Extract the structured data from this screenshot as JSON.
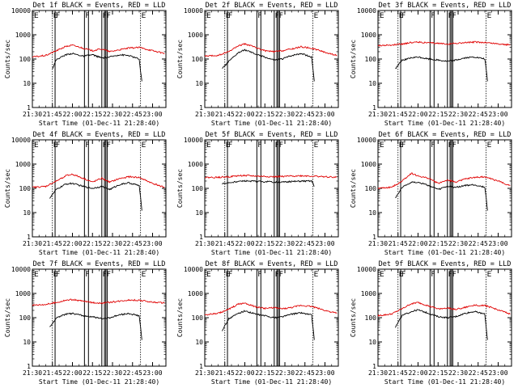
{
  "colors": {
    "events": "#000000",
    "lld": "#e00000",
    "axes": "#000000",
    "background": "#ffffff"
  },
  "shared": {
    "xlabel": "Start Time (01-Dec-11 21:28:40)",
    "ylabel": "Counts/sec",
    "xtick_labels": [
      "21:30",
      "21:45",
      "22:00",
      "22:15",
      "22:30",
      "22:45",
      "23:00"
    ],
    "ytick_labels": [
      "1",
      "10",
      "100",
      "1000",
      "10000"
    ],
    "flag_labels": [
      "E",
      "F",
      "F",
      "F",
      "F",
      "E"
    ]
  },
  "chart_data": [
    {
      "type": "line",
      "title": "Det 1f BLACK = Events, RED = LLD",
      "xlim": [
        "21:30",
        "23:10"
      ],
      "ylim": [
        1,
        10000
      ],
      "yscale": "log",
      "grid": false,
      "markers": [
        "21:45",
        "21:47",
        "22:09",
        "22:12",
        "22:22",
        "22:24",
        "22:25",
        "22:26",
        "22:51"
      ],
      "series": [
        {
          "name": "Events",
          "color": "#000000",
          "x": [
            "21:45",
            "21:48",
            "21:55",
            "22:00",
            "22:08",
            "22:15",
            "22:22",
            "22:28",
            "22:35",
            "22:42",
            "22:50",
            "22:51",
            "22:52"
          ],
          "values": [
            40,
            95,
            150,
            170,
            130,
            150,
            110,
            120,
            150,
            140,
            100,
            30,
            12
          ]
        },
        {
          "name": "LLD",
          "color": "#e00000",
          "x": [
            "21:30",
            "21:40",
            "21:48",
            "21:55",
            "22:00",
            "22:08",
            "22:15",
            "22:22",
            "22:28",
            "22:35",
            "22:42",
            "22:50",
            "23:00",
            "23:09"
          ],
          "values": [
            120,
            140,
            220,
            330,
            370,
            280,
            220,
            260,
            200,
            240,
            280,
            300,
            220,
            170
          ]
        }
      ]
    },
    {
      "type": "line",
      "title": "Det 2f BLACK = Events, RED = LLD",
      "xlim": [
        "21:30",
        "23:10"
      ],
      "ylim": [
        1,
        10000
      ],
      "yscale": "log",
      "grid": false,
      "markers": [
        "21:45",
        "21:47",
        "22:09",
        "22:12",
        "22:22",
        "22:24",
        "22:25",
        "22:26",
        "22:51"
      ],
      "series": [
        {
          "name": "Events",
          "color": "#000000",
          "x": [
            "21:43",
            "21:48",
            "21:55",
            "22:00",
            "22:08",
            "22:15",
            "22:22",
            "22:28",
            "22:35",
            "22:42",
            "22:50",
            "22:51",
            "22:52"
          ],
          "values": [
            40,
            80,
            180,
            240,
            160,
            120,
            90,
            100,
            140,
            170,
            120,
            40,
            12
          ]
        },
        {
          "name": "LLD",
          "color": "#e00000",
          "x": [
            "21:30",
            "21:40",
            "21:48",
            "21:55",
            "22:00",
            "22:08",
            "22:15",
            "22:22",
            "22:28",
            "22:35",
            "22:42",
            "22:50",
            "23:00",
            "23:09"
          ],
          "values": [
            130,
            140,
            200,
            350,
            420,
            300,
            220,
            200,
            220,
            260,
            320,
            280,
            190,
            140
          ]
        }
      ]
    },
    {
      "type": "line",
      "title": "Det 3f BLACK = Events, RED = LLD",
      "xlim": [
        "21:30",
        "23:10"
      ],
      "ylim": [
        1,
        10000
      ],
      "yscale": "log",
      "grid": false,
      "markers": [
        "21:45",
        "21:47",
        "22:09",
        "22:12",
        "22:22",
        "22:24",
        "22:25",
        "22:26",
        "22:51"
      ],
      "series": [
        {
          "name": "Events",
          "color": "#000000",
          "x": [
            "21:43",
            "21:48",
            "21:55",
            "22:00",
            "22:08",
            "22:15",
            "22:22",
            "22:28",
            "22:35",
            "22:42",
            "22:50",
            "22:51",
            "22:52"
          ],
          "values": [
            40,
            90,
            110,
            120,
            100,
            90,
            80,
            90,
            110,
            120,
            100,
            40,
            12
          ]
        },
        {
          "name": "LLD",
          "color": "#e00000",
          "x": [
            "21:30",
            "21:40",
            "21:48",
            "21:55",
            "22:00",
            "22:08",
            "22:15",
            "22:22",
            "22:28",
            "22:35",
            "22:42",
            "22:50",
            "23:00",
            "23:09"
          ],
          "values": [
            360,
            370,
            420,
            480,
            500,
            460,
            440,
            420,
            440,
            470,
            500,
            480,
            420,
            380
          ]
        }
      ]
    },
    {
      "type": "line",
      "title": "Det 4f BLACK = Events, RED = LLD",
      "xlim": [
        "21:30",
        "23:10"
      ],
      "ylim": [
        1,
        10000
      ],
      "yscale": "log",
      "grid": false,
      "markers": [
        "21:45",
        "21:47",
        "22:09",
        "22:12",
        "22:22",
        "22:24",
        "22:25",
        "22:26",
        "22:51"
      ],
      "series": [
        {
          "name": "Events",
          "color": "#000000",
          "x": [
            "21:43",
            "21:48",
            "21:55",
            "22:00",
            "22:08",
            "22:15",
            "22:22",
            "22:28",
            "22:35",
            "22:42",
            "22:50",
            "22:51",
            "22:52"
          ],
          "values": [
            40,
            90,
            150,
            160,
            120,
            100,
            120,
            90,
            140,
            170,
            130,
            40,
            12
          ]
        },
        {
          "name": "LLD",
          "color": "#e00000",
          "x": [
            "21:30",
            "21:40",
            "21:48",
            "21:55",
            "22:00",
            "22:08",
            "22:15",
            "22:22",
            "22:28",
            "22:35",
            "22:42",
            "22:50",
            "23:00",
            "23:09"
          ],
          "values": [
            110,
            120,
            200,
            330,
            380,
            260,
            180,
            260,
            180,
            250,
            300,
            280,
            160,
            110
          ]
        }
      ]
    },
    {
      "type": "line",
      "title": "Det 5f BLACK = Events, RED = LLD",
      "xlim": [
        "21:30",
        "23:10"
      ],
      "ylim": [
        1,
        10000
      ],
      "yscale": "log",
      "grid": false,
      "markers": [
        "21:45",
        "21:47",
        "22:09",
        "22:12",
        "22:22",
        "22:24",
        "22:25",
        "22:26",
        "22:51"
      ],
      "series": [
        {
          "name": "Events",
          "color": "#000000",
          "x": [
            "21:43",
            "21:48",
            "21:55",
            "22:00",
            "22:08",
            "22:15",
            "22:22",
            "22:28",
            "22:35",
            "22:42",
            "22:50",
            "22:51",
            "22:52"
          ],
          "values": [
            150,
            170,
            190,
            200,
            195,
            190,
            180,
            180,
            190,
            200,
            200,
            160,
            120
          ]
        },
        {
          "name": "LLD",
          "color": "#e00000",
          "x": [
            "21:30",
            "21:40",
            "21:48",
            "21:55",
            "22:00",
            "22:08",
            "22:15",
            "22:22",
            "22:28",
            "22:35",
            "22:42",
            "22:50",
            "23:00",
            "23:09"
          ],
          "values": [
            280,
            285,
            300,
            330,
            340,
            320,
            310,
            300,
            310,
            320,
            330,
            320,
            300,
            290
          ]
        }
      ]
    },
    {
      "type": "line",
      "title": "Det 6f BLACK = Events, RED = LLD",
      "xlim": [
        "21:30",
        "23:10"
      ],
      "ylim": [
        1,
        10000
      ],
      "yscale": "log",
      "grid": false,
      "markers": [
        "21:45",
        "21:47",
        "22:09",
        "22:12",
        "22:22",
        "22:24",
        "22:25",
        "22:26",
        "22:51"
      ],
      "series": [
        {
          "name": "Events",
          "color": "#000000",
          "x": [
            "21:43",
            "21:48",
            "21:55",
            "22:00",
            "22:08",
            "22:15",
            "22:22",
            "22:28",
            "22:35",
            "22:42",
            "22:50",
            "22:51",
            "22:52"
          ],
          "values": [
            40,
            110,
            180,
            180,
            130,
            90,
            120,
            110,
            130,
            140,
            110,
            40,
            12
          ]
        },
        {
          "name": "LLD",
          "color": "#e00000",
          "x": [
            "21:30",
            "21:40",
            "21:48",
            "21:55",
            "22:00",
            "22:08",
            "22:15",
            "22:22",
            "22:28",
            "22:35",
            "22:42",
            "22:50",
            "23:00",
            "23:09"
          ],
          "values": [
            100,
            110,
            200,
            420,
            320,
            260,
            160,
            220,
            180,
            240,
            280,
            300,
            200,
            130
          ]
        }
      ]
    },
    {
      "type": "line",
      "title": "Det 7f BLACK = Events, RED = LLD",
      "xlim": [
        "21:30",
        "23:10"
      ],
      "ylim": [
        1,
        10000
      ],
      "yscale": "log",
      "grid": false,
      "markers": [
        "21:45",
        "21:47",
        "22:09",
        "22:12",
        "22:22",
        "22:24",
        "22:25",
        "22:26",
        "22:51"
      ],
      "series": [
        {
          "name": "Events",
          "color": "#000000",
          "x": [
            "21:43",
            "21:48",
            "21:55",
            "22:00",
            "22:08",
            "22:15",
            "22:22",
            "22:28",
            "22:35",
            "22:42",
            "22:50",
            "22:51",
            "22:52"
          ],
          "values": [
            40,
            100,
            140,
            150,
            120,
            110,
            90,
            100,
            130,
            150,
            120,
            40,
            12
          ]
        },
        {
          "name": "LLD",
          "color": "#e00000",
          "x": [
            "21:30",
            "21:40",
            "21:48",
            "21:55",
            "22:00",
            "22:08",
            "22:15",
            "22:22",
            "22:28",
            "22:35",
            "22:42",
            "22:50",
            "23:00",
            "23:09"
          ],
          "values": [
            330,
            350,
            420,
            520,
            560,
            480,
            420,
            400,
            430,
            480,
            540,
            520,
            440,
            400
          ]
        }
      ]
    },
    {
      "type": "line",
      "title": "Det 8f BLACK = Events, RED = LLD",
      "xlim": [
        "21:30",
        "23:10"
      ],
      "ylim": [
        1,
        10000
      ],
      "yscale": "log",
      "grid": false,
      "markers": [
        "21:45",
        "21:47",
        "22:09",
        "22:12",
        "22:22",
        "22:24",
        "22:25",
        "22:26",
        "22:51"
      ],
      "series": [
        {
          "name": "Events",
          "color": "#000000",
          "x": [
            "21:43",
            "21:48",
            "21:55",
            "22:00",
            "22:08",
            "22:15",
            "22:22",
            "22:28",
            "22:35",
            "22:42",
            "22:50",
            "22:51",
            "22:52"
          ],
          "values": [
            30,
            90,
            150,
            190,
            140,
            120,
            100,
            110,
            140,
            160,
            130,
            40,
            12
          ]
        },
        {
          "name": "LLD",
          "color": "#e00000",
          "x": [
            "21:30",
            "21:40",
            "21:48",
            "21:55",
            "22:00",
            "22:08",
            "22:15",
            "22:22",
            "22:28",
            "22:35",
            "22:42",
            "22:50",
            "23:00",
            "23:09"
          ],
          "values": [
            130,
            150,
            220,
            360,
            400,
            280,
            240,
            260,
            230,
            260,
            320,
            290,
            200,
            150
          ]
        }
      ]
    },
    {
      "type": "line",
      "title": "Det 9f BLACK = Events, RED = LLD",
      "xlim": [
        "21:30",
        "23:10"
      ],
      "ylim": [
        1,
        10000
      ],
      "yscale": "log",
      "grid": false,
      "markers": [
        "21:45",
        "21:47",
        "22:09",
        "22:12",
        "22:22",
        "22:24",
        "22:25",
        "22:26",
        "22:51"
      ],
      "series": [
        {
          "name": "Events",
          "color": "#000000",
          "x": [
            "21:43",
            "21:48",
            "21:55",
            "22:00",
            "22:08",
            "22:15",
            "22:22",
            "22:28",
            "22:35",
            "22:42",
            "22:50",
            "22:51",
            "22:52"
          ],
          "values": [
            40,
            120,
            180,
            210,
            150,
            110,
            100,
            110,
            150,
            180,
            140,
            40,
            12
          ]
        },
        {
          "name": "LLD",
          "color": "#e00000",
          "x": [
            "21:30",
            "21:40",
            "21:48",
            "21:55",
            "22:00",
            "22:08",
            "22:15",
            "22:22",
            "22:28",
            "22:35",
            "22:42",
            "22:50",
            "23:00",
            "23:09"
          ],
          "values": [
            120,
            140,
            230,
            380,
            420,
            300,
            230,
            250,
            220,
            260,
            330,
            320,
            210,
            140
          ]
        }
      ]
    }
  ]
}
